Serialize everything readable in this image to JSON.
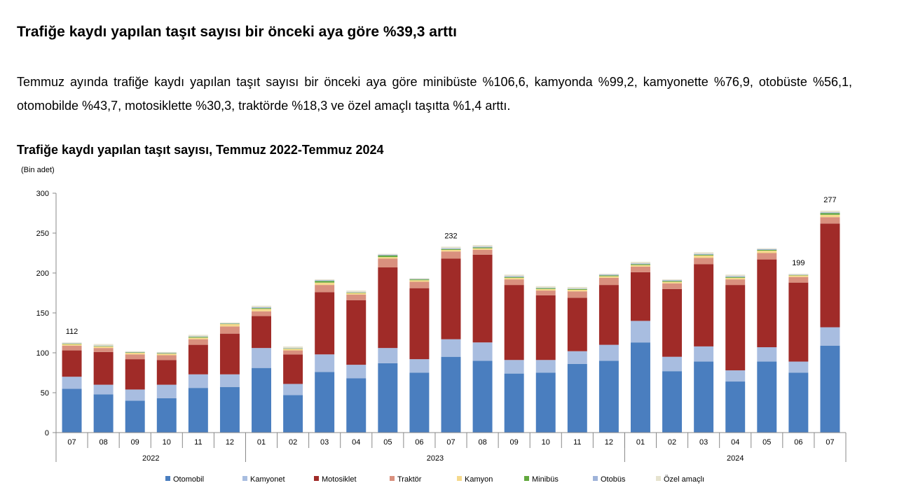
{
  "headline": "Trafiğe kaydı yapılan taşıt sayısı bir önceki aya göre %39,3 arttı",
  "paragraph": "Temmuz ayında trafiğe kaydı yapılan taşıt sayısı bir önceki aya göre minibüste %106,6, kamyonda %99,2, kamyonette %76,9, otobüste %56,1, otomobilde %43,7, motosiklette %30,3, traktörde %18,3 ve özel amaçlı taşıtta %1,4 arttı.",
  "chart_data": {
    "type": "bar",
    "stacked": true,
    "title": "Trafiğe kaydı yapılan taşıt sayısı, Temmuz 2022-Temmuz 2024",
    "unit_label": "(Bin adet)",
    "ylim": [
      0,
      300
    ],
    "yticks": [
      0,
      50,
      100,
      150,
      200,
      250,
      300
    ],
    "grid": false,
    "legend_position": "bottom",
    "categories": [
      "07",
      "08",
      "09",
      "10",
      "11",
      "12",
      "01",
      "02",
      "03",
      "04",
      "05",
      "06",
      "07",
      "08",
      "09",
      "10",
      "11",
      "12",
      "01",
      "02",
      "03",
      "04",
      "05",
      "06",
      "07"
    ],
    "year_groups": [
      {
        "label": "2022",
        "count": 6
      },
      {
        "label": "2023",
        "count": 12
      },
      {
        "label": "2024",
        "count": 7
      }
    ],
    "series": [
      {
        "name": "Otomobil",
        "color": "#4a7ebf",
        "values": [
          55,
          48,
          40,
          43,
          56,
          57,
          81,
          47,
          76,
          68,
          87,
          75,
          95,
          90,
          74,
          75,
          86,
          90,
          113,
          77,
          89,
          64,
          89,
          75,
          109
        ]
      },
      {
        "name": "Kamyonet",
        "color": "#a8bde0",
        "values": [
          15,
          12,
          14,
          17,
          17,
          16,
          25,
          14,
          22,
          17,
          19,
          17,
          22,
          23,
          17,
          16,
          16,
          20,
          27,
          18,
          19,
          14,
          18,
          14,
          23
        ]
      },
      {
        "name": "Motosiklet",
        "color": "#a02b28",
        "values": [
          33,
          41,
          38,
          31,
          37,
          51,
          40,
          37,
          78,
          81,
          101,
          89,
          101,
          110,
          94,
          81,
          67,
          75,
          61,
          85,
          103,
          107,
          110,
          99,
          130
        ]
      },
      {
        "name": "Traktör",
        "color": "#d9907e",
        "values": [
          6,
          5,
          6,
          6,
          7,
          9,
          6,
          5,
          9,
          7,
          11,
          8,
          9,
          6,
          7,
          6,
          8,
          9,
          7,
          7,
          8,
          7,
          8,
          7,
          8
        ]
      },
      {
        "name": "Kamyon",
        "color": "#f5d98c",
        "values": [
          2,
          2,
          2,
          2,
          2,
          3,
          3,
          2,
          3,
          2,
          2,
          2,
          2,
          2,
          2,
          2,
          2,
          2,
          2,
          2,
          3,
          2,
          3,
          2,
          3
        ]
      },
      {
        "name": "Minibüs",
        "color": "#62a83e",
        "values": [
          0.5,
          0.5,
          0.5,
          0.5,
          1,
          0.5,
          1,
          0.5,
          2,
          0.5,
          2,
          1,
          1,
          1,
          1,
          1,
          1,
          1,
          1,
          1,
          1,
          1,
          1,
          0.5,
          2
        ]
      },
      {
        "name": "Otobüs",
        "color": "#9fb3d9",
        "values": [
          0.5,
          0.5,
          0.5,
          0.5,
          0.5,
          0.5,
          1,
          0.5,
          1,
          0.5,
          1,
          0.5,
          1,
          1,
          1,
          0.5,
          0.5,
          1,
          1,
          1,
          1,
          1,
          1,
          0.5,
          1
        ]
      },
      {
        "name": "Özel amaçlı",
        "color": "#e6e3cf",
        "values": [
          1,
          2,
          1,
          1,
          2,
          1,
          2,
          2,
          1,
          2,
          1,
          1,
          2,
          2,
          2,
          2,
          2,
          1,
          2,
          1,
          2,
          2,
          1,
          1,
          2
        ]
      }
    ],
    "data_labels": [
      {
        "index": 0,
        "text": "112"
      },
      {
        "index": 12,
        "text": "232"
      },
      {
        "index": 23,
        "text": "199"
      },
      {
        "index": 24,
        "text": "277"
      }
    ]
  }
}
